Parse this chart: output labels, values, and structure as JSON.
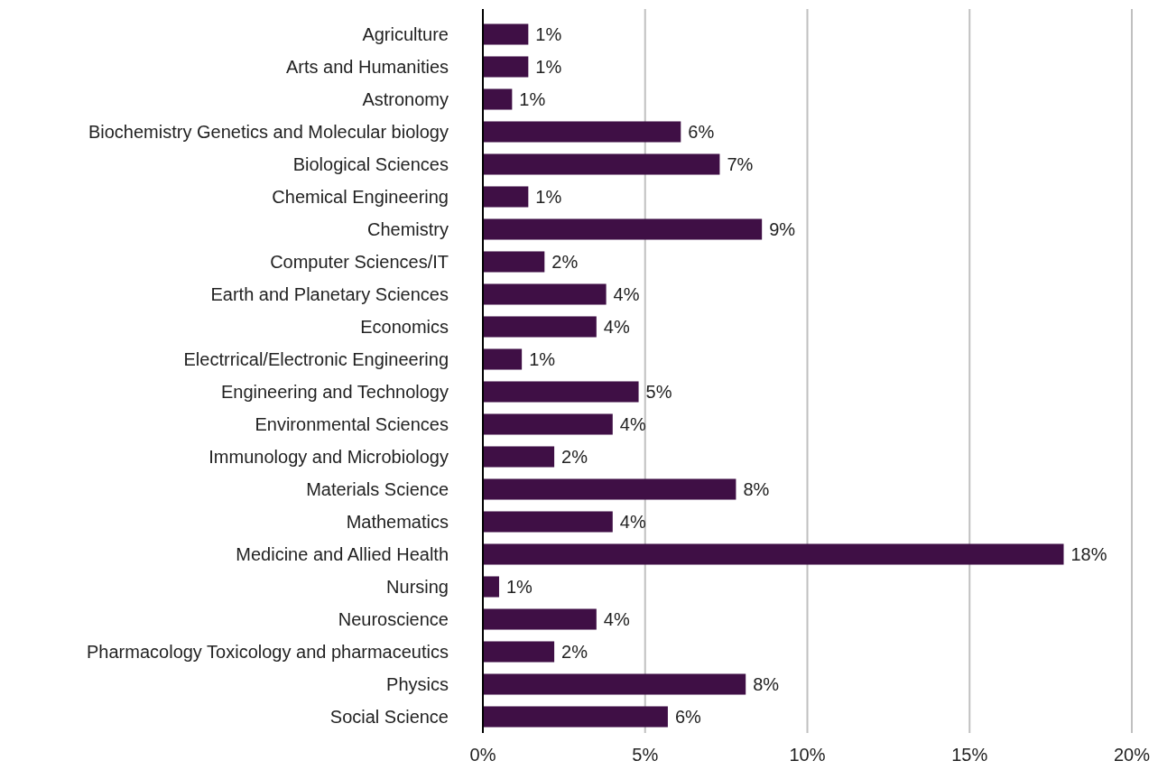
{
  "chart_data": {
    "type": "bar",
    "orientation": "horizontal",
    "categories": [
      "Agriculture",
      "Arts and Humanities",
      "Astronomy",
      "Biochemistry Genetics and Molecular biology",
      "Biological Sciences",
      "Chemical Engineering",
      "Chemistry",
      "Computer Sciences/IT",
      "Earth and Planetary Sciences",
      "Economics",
      "Electrrical/Electronic Engineering",
      "Engineering and Technology",
      "Environmental Sciences",
      "Immunology and Microbiology",
      "Materials Science",
      "Mathematics",
      "Medicine and Allied Health",
      "Nursing",
      "Neuroscience",
      "Pharmacology Toxicology and pharmaceutics",
      "Physics",
      "Social Science"
    ],
    "values": [
      1.4,
      1.4,
      0.9,
      6.1,
      7.3,
      1.4,
      8.6,
      1.9,
      3.8,
      3.5,
      1.2,
      4.8,
      4.0,
      2.2,
      7.8,
      4.0,
      17.9,
      0.5,
      3.5,
      2.2,
      8.1,
      5.7
    ],
    "value_labels": [
      "1%",
      "1%",
      "1%",
      "6%",
      "7%",
      "1%",
      "9%",
      "2%",
      "4%",
      "4%",
      "1%",
      "5%",
      "4%",
      "2%",
      "8%",
      "4%",
      "18%",
      "1%",
      "4%",
      "2%",
      "8%",
      "6%"
    ],
    "color": "#3f0f45",
    "xlim": [
      0,
      20
    ],
    "xticks": [
      {
        "value": 0,
        "label": "0%"
      },
      {
        "value": 5,
        "label": "5%"
      },
      {
        "value": 10,
        "label": "10%"
      },
      {
        "value": 15,
        "label": "15%"
      },
      {
        "value": 20,
        "label": "20%"
      }
    ],
    "grid": "x"
  }
}
